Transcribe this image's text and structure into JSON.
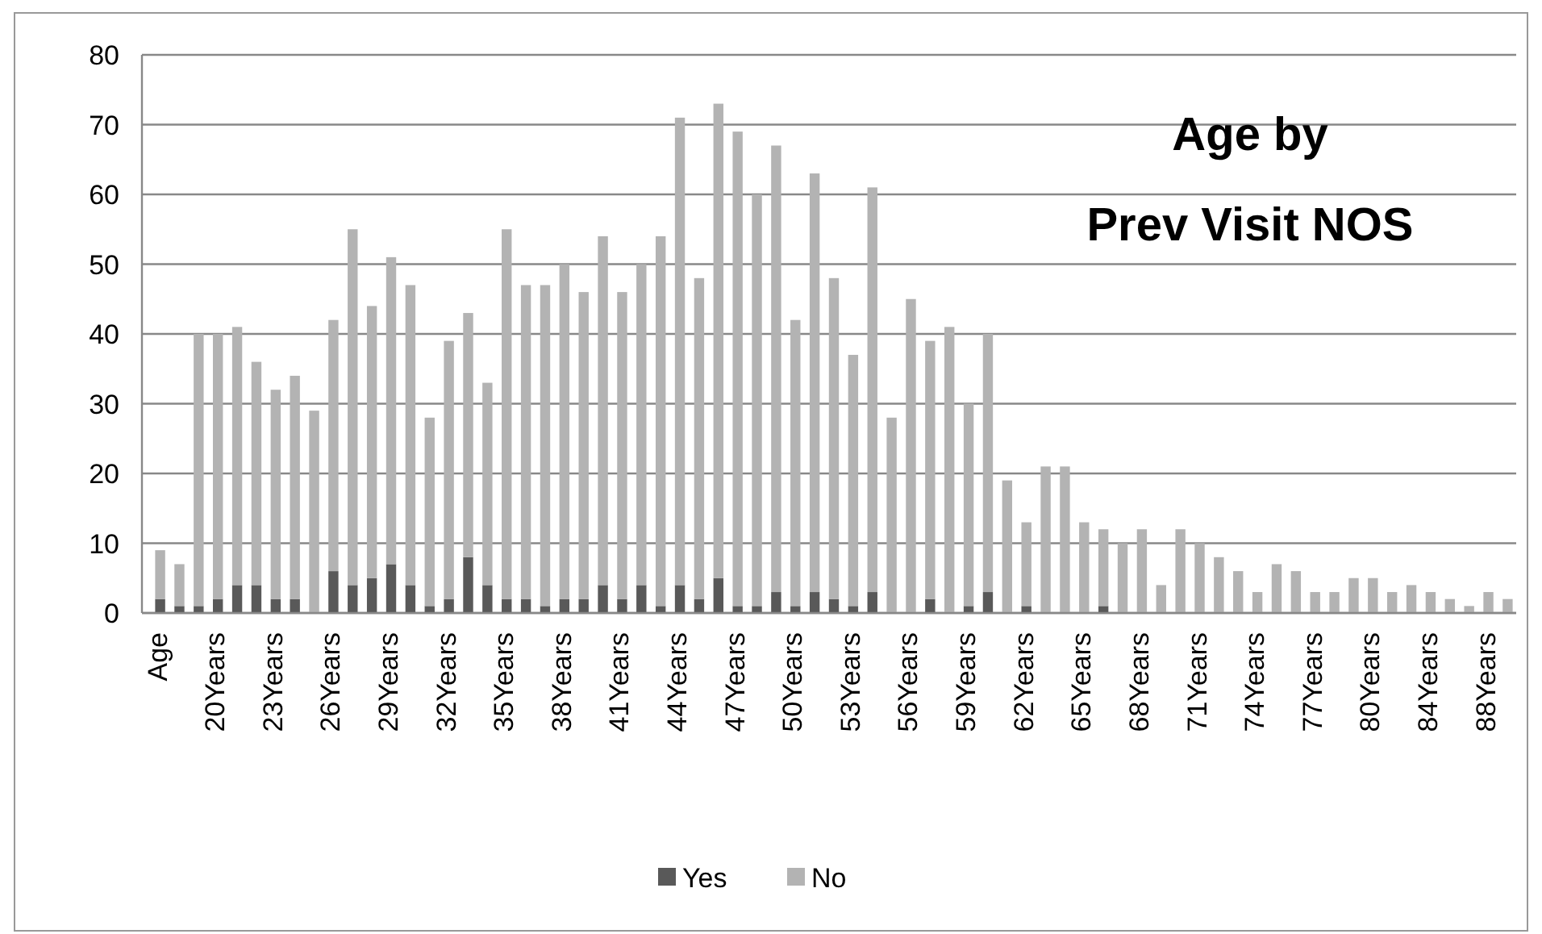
{
  "chart_data": {
    "type": "bar",
    "title": "Age by\nPrev Visit NOS",
    "stacked": true,
    "categories": [
      "Age",
      null,
      null,
      "20Years",
      null,
      null,
      "23Years",
      null,
      null,
      "26Years",
      null,
      null,
      "29Years",
      null,
      null,
      "32Years",
      null,
      null,
      "35Years",
      null,
      null,
      "38Years",
      null,
      null,
      "41Years",
      null,
      null,
      "44Years",
      null,
      null,
      "47Years",
      null,
      null,
      "50Years",
      null,
      null,
      "53Years",
      null,
      null,
      "56Years",
      null,
      null,
      "59Years",
      null,
      null,
      "62Years",
      null,
      null,
      "65Years",
      null,
      null,
      "68Years",
      null,
      null,
      "71Years",
      null,
      null,
      "74Years",
      null,
      null,
      "77Years",
      null,
      null,
      "80Years",
      null,
      null,
      "84Years",
      null,
      null,
      "88Years",
      null
    ],
    "series": [
      {
        "name": "Yes",
        "color": "#595959",
        "values": [
          2,
          1,
          1,
          2,
          4,
          4,
          2,
          2,
          0,
          6,
          4,
          5,
          7,
          4,
          1,
          2,
          8,
          4,
          2,
          2,
          1,
          2,
          2,
          4,
          2,
          4,
          1,
          4,
          2,
          5,
          1,
          1,
          3,
          1,
          3,
          2,
          1,
          3,
          0,
          0,
          2,
          0,
          1,
          3,
          0,
          1,
          0,
          0,
          0,
          1,
          0,
          0,
          0,
          0,
          0,
          0,
          0,
          0,
          0,
          0,
          0,
          0,
          0,
          0,
          0,
          0,
          0,
          0,
          0,
          0,
          0
        ]
      },
      {
        "name": "No",
        "color": "#b3b3b3",
        "values": [
          7,
          6,
          39,
          38,
          37,
          32,
          30,
          32,
          29,
          36,
          51,
          39,
          44,
          43,
          27,
          37,
          35,
          29,
          53,
          45,
          46,
          48,
          44,
          50,
          44,
          46,
          53,
          67,
          46,
          68,
          68,
          59,
          64,
          41,
          60,
          46,
          36,
          58,
          28,
          45,
          37,
          41,
          29,
          37,
          19,
          12,
          21,
          21,
          13,
          11,
          10,
          12,
          4,
          12,
          10,
          8,
          6,
          3,
          7,
          6,
          3,
          3,
          5,
          5,
          3,
          4,
          3,
          2,
          1,
          3,
          2
        ]
      }
    ],
    "ylim": [
      0,
      80
    ],
    "yticks": [
      0,
      10,
      20,
      30,
      40,
      50,
      60,
      70,
      80
    ],
    "grid": "y",
    "legend": "bottom"
  }
}
